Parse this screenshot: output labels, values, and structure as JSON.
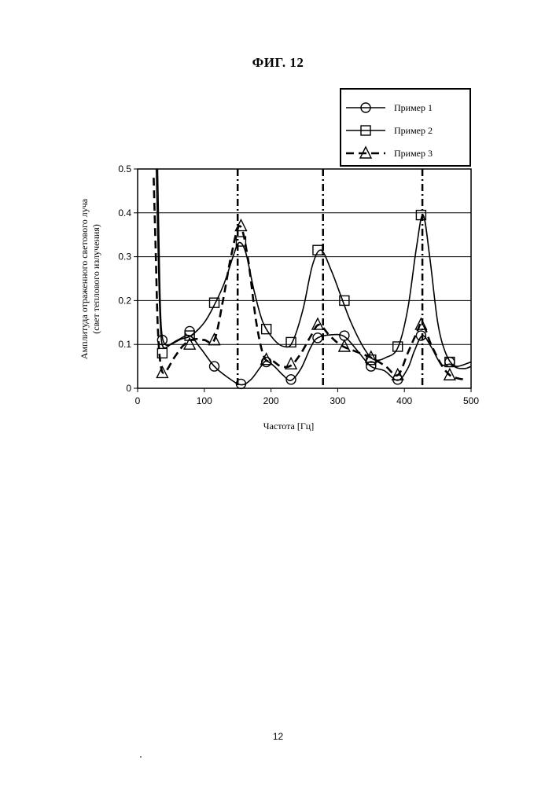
{
  "figure": {
    "title": "ФИГ. 12",
    "page_number": "12"
  },
  "chart_data": {
    "type": "line",
    "xlabel": "Частота [Гц]",
    "ylabel": [
      "Амплитуда отраженного светового луча",
      "(свет теплового излучения)"
    ],
    "xlim": [
      0,
      500
    ],
    "ylim": [
      0,
      0.5
    ],
    "x_ticks": [
      "0",
      "100",
      "200",
      "300",
      "400",
      "500"
    ],
    "y_ticks": [
      "0",
      "0.1",
      "0.2",
      "0.3",
      "0.4",
      "0.5"
    ],
    "grid": "horizontal",
    "legend_position": "top-right",
    "vertical_markers": [
      150,
      278,
      427
    ],
    "series": [
      {
        "name": "Пример 1",
        "marker": "circle",
        "line_style": "solid",
        "points": [
          [
            37,
            0.11
          ],
          [
            78,
            0.13
          ],
          [
            115,
            0.05
          ],
          [
            155,
            0.01
          ],
          [
            193,
            0.06
          ],
          [
            230,
            0.02
          ],
          [
            270,
            0.115
          ],
          [
            310,
            0.12
          ],
          [
            350,
            0.05
          ],
          [
            390,
            0.02
          ],
          [
            425,
            0.12
          ],
          [
            468,
            0.06
          ]
        ],
        "curve": [
          [
            30,
            0.5
          ],
          [
            33,
            0.25
          ],
          [
            35,
            0.15
          ],
          [
            38,
            0.11
          ],
          [
            45,
            0.098
          ],
          [
            60,
            0.11
          ],
          [
            78,
            0.12
          ],
          [
            95,
            0.09
          ],
          [
            115,
            0.05
          ],
          [
            135,
            0.025
          ],
          [
            155,
            0.008
          ],
          [
            170,
            0.02
          ],
          [
            185,
            0.05
          ],
          [
            193,
            0.062
          ],
          [
            205,
            0.05
          ],
          [
            218,
            0.03
          ],
          [
            230,
            0.018
          ],
          [
            245,
            0.045
          ],
          [
            260,
            0.095
          ],
          [
            270,
            0.115
          ],
          [
            290,
            0.122
          ],
          [
            310,
            0.118
          ],
          [
            330,
            0.085
          ],
          [
            350,
            0.05
          ],
          [
            370,
            0.04
          ],
          [
            390,
            0.018
          ],
          [
            405,
            0.045
          ],
          [
            415,
            0.085
          ],
          [
            427,
            0.12
          ],
          [
            440,
            0.095
          ],
          [
            455,
            0.055
          ],
          [
            468,
            0.055
          ],
          [
            480,
            0.05
          ],
          [
            500,
            0.06
          ]
        ]
      },
      {
        "name": "Пример 2",
        "marker": "square",
        "line_style": "solid",
        "points": [
          [
            37,
            0.08
          ],
          [
            78,
            0.12
          ],
          [
            115,
            0.195
          ],
          [
            155,
            0.335
          ],
          [
            193,
            0.135
          ],
          [
            230,
            0.105
          ],
          [
            270,
            0.315
          ],
          [
            310,
            0.2
          ],
          [
            350,
            0.065
          ],
          [
            390,
            0.095
          ],
          [
            425,
            0.395
          ],
          [
            468,
            0.06
          ]
        ],
        "curve": [
          [
            28,
            0.5
          ],
          [
            31,
            0.3
          ],
          [
            34,
            0.15
          ],
          [
            38,
            0.095
          ],
          [
            50,
            0.1
          ],
          [
            65,
            0.112
          ],
          [
            80,
            0.12
          ],
          [
            100,
            0.15
          ],
          [
            115,
            0.19
          ],
          [
            130,
            0.24
          ],
          [
            143,
            0.3
          ],
          [
            152,
            0.332
          ],
          [
            162,
            0.31
          ],
          [
            175,
            0.22
          ],
          [
            188,
            0.15
          ],
          [
            205,
            0.11
          ],
          [
            220,
            0.095
          ],
          [
            232,
            0.105
          ],
          [
            248,
            0.18
          ],
          [
            262,
            0.28
          ],
          [
            275,
            0.315
          ],
          [
            290,
            0.27
          ],
          [
            305,
            0.21
          ],
          [
            320,
            0.15
          ],
          [
            340,
            0.09
          ],
          [
            355,
            0.065
          ],
          [
            372,
            0.07
          ],
          [
            390,
            0.092
          ],
          [
            405,
            0.18
          ],
          [
            418,
            0.32
          ],
          [
            428,
            0.395
          ],
          [
            438,
            0.3
          ],
          [
            450,
            0.15
          ],
          [
            462,
            0.08
          ],
          [
            475,
            0.05
          ],
          [
            490,
            0.045
          ],
          [
            500,
            0.05
          ]
        ]
      },
      {
        "name": "Пример 3",
        "marker": "triangle",
        "line_style": "dashed",
        "points": [
          [
            37,
            0.035
          ],
          [
            78,
            0.1
          ],
          [
            115,
            0.11
          ],
          [
            155,
            0.37
          ],
          [
            193,
            0.065
          ],
          [
            230,
            0.055
          ],
          [
            270,
            0.145
          ],
          [
            310,
            0.095
          ],
          [
            350,
            0.07
          ],
          [
            390,
            0.03
          ],
          [
            425,
            0.145
          ],
          [
            468,
            0.03
          ]
        ],
        "curve": [
          [
            24,
            0.48
          ],
          [
            27,
            0.32
          ],
          [
            30,
            0.15
          ],
          [
            34,
            0.06
          ],
          [
            40,
            0.035
          ],
          [
            55,
            0.07
          ],
          [
            70,
            0.1
          ],
          [
            85,
            0.112
          ],
          [
            100,
            0.11
          ],
          [
            115,
            0.11
          ],
          [
            128,
            0.2
          ],
          [
            140,
            0.3
          ],
          [
            153,
            0.37
          ],
          [
            165,
            0.3
          ],
          [
            178,
            0.15
          ],
          [
            190,
            0.07
          ],
          [
            203,
            0.062
          ],
          [
            215,
            0.05
          ],
          [
            230,
            0.052
          ],
          [
            245,
            0.08
          ],
          [
            260,
            0.12
          ],
          [
            272,
            0.145
          ],
          [
            288,
            0.12
          ],
          [
            305,
            0.098
          ],
          [
            325,
            0.085
          ],
          [
            350,
            0.07
          ],
          [
            372,
            0.05
          ],
          [
            390,
            0.03
          ],
          [
            405,
            0.08
          ],
          [
            418,
            0.125
          ],
          [
            427,
            0.148
          ],
          [
            440,
            0.1
          ],
          [
            455,
            0.055
          ],
          [
            468,
            0.03
          ],
          [
            482,
            0.022
          ],
          [
            494,
            0.02
          ]
        ]
      }
    ]
  }
}
